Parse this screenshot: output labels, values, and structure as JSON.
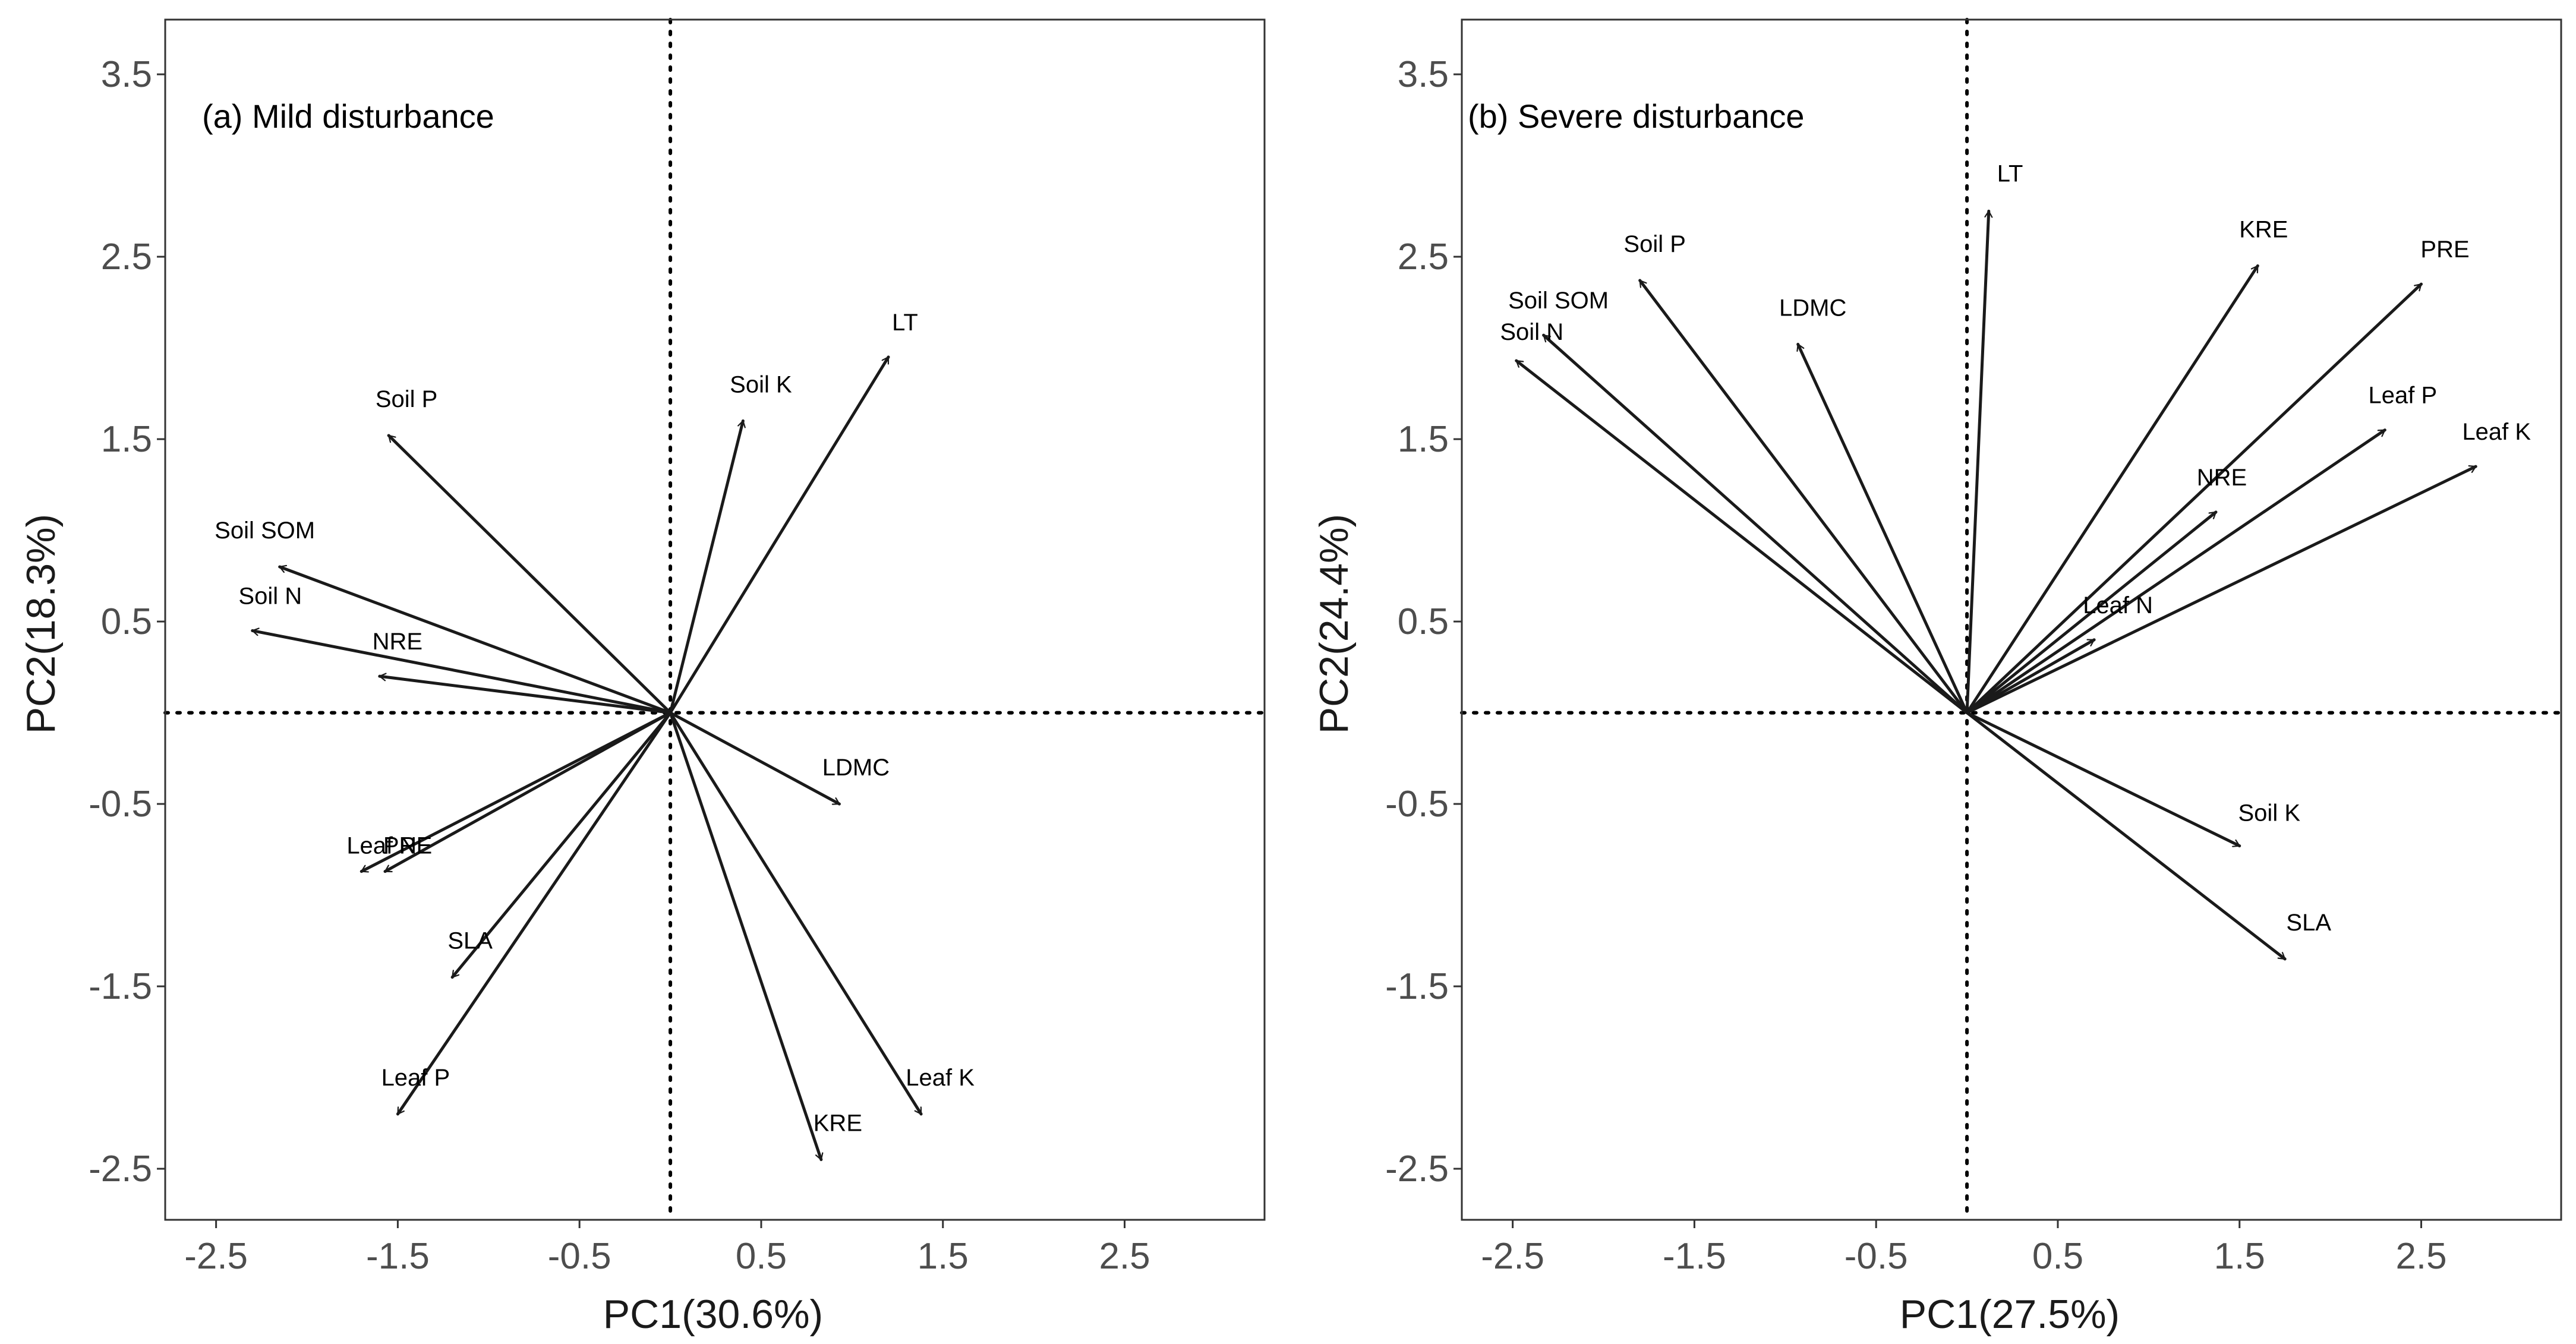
{
  "chart_data": [
    {
      "type": "biplot",
      "title": "(a) Mild disturbance",
      "xlabel": "PC1(30.6%)",
      "ylabel": "PC2(18.3%)",
      "xlim": [
        -2.78,
        3.27
      ],
      "ylim": [
        -2.78,
        3.8
      ],
      "xticks": [
        "-2.5",
        "-1.5",
        "-0.5",
        "0.5",
        "1.5",
        "2.5"
      ],
      "yticks": [
        "-2.5",
        "-1.5",
        "-0.5",
        "0.5",
        "1.5",
        "2.5",
        "3.5"
      ],
      "vectors": [
        {
          "label": "LT",
          "x": 1.2,
          "y": 1.95
        },
        {
          "label": "Soil K",
          "x": 0.4,
          "y": 1.6
        },
        {
          "label": "Soil P",
          "x": -1.55,
          "y": 1.52
        },
        {
          "label": "Soil SOM",
          "x": -2.15,
          "y": 0.8
        },
        {
          "label": "Soil N",
          "x": -2.3,
          "y": 0.45
        },
        {
          "label": "NRE",
          "x": -1.6,
          "y": 0.2
        },
        {
          "label": "LDMC",
          "x": 0.93,
          "y": -0.5
        },
        {
          "label": "Leaf N",
          "x": -1.7,
          "y": -0.87
        },
        {
          "label": "PRE",
          "x": -1.57,
          "y": -0.87
        },
        {
          "label": "SLA",
          "x": -1.2,
          "y": -1.45
        },
        {
          "label": "Leaf P",
          "x": -1.5,
          "y": -2.2
        },
        {
          "label": "Leaf K",
          "x": 1.38,
          "y": -2.2
        },
        {
          "label": "KRE",
          "x": 0.83,
          "y": -2.45
        }
      ]
    },
    {
      "type": "biplot",
      "title": "(b) Severe disturbance",
      "xlabel": "PC1(27.5%)",
      "ylabel": "PC2(24.4%)",
      "xlim": [
        -2.78,
        3.27
      ],
      "ylim": [
        -2.78,
        3.8
      ],
      "xticks": [
        "-2.5",
        "-1.5",
        "-0.5",
        "0.5",
        "1.5",
        "2.5"
      ],
      "yticks": [
        "-2.5",
        "-1.5",
        "-0.5",
        "0.5",
        "1.5",
        "2.5",
        "3.5"
      ],
      "vectors": [
        {
          "label": "LT",
          "x": 0.12,
          "y": 2.75
        },
        {
          "label": "KRE",
          "x": 1.6,
          "y": 2.45
        },
        {
          "label": "PRE",
          "x": 2.5,
          "y": 2.35
        },
        {
          "label": "Soil P",
          "x": -1.8,
          "y": 2.37
        },
        {
          "label": "Soil SOM",
          "x": -2.33,
          "y": 2.07
        },
        {
          "label": "LDMC",
          "x": -0.93,
          "y": 2.02
        },
        {
          "label": "Soil N",
          "x": -2.48,
          "y": 1.93
        },
        {
          "label": "Leaf P",
          "x": 2.3,
          "y": 1.55
        },
        {
          "label": "Leaf K",
          "x": 2.8,
          "y": 1.35
        },
        {
          "label": "NRE",
          "x": 1.37,
          "y": 1.1
        },
        {
          "label": "Leaf N",
          "x": 0.7,
          "y": 0.4
        },
        {
          "label": "Soil K",
          "x": 1.5,
          "y": -0.73
        },
        {
          "label": "SLA",
          "x": 1.75,
          "y": -1.35
        }
      ]
    }
  ]
}
